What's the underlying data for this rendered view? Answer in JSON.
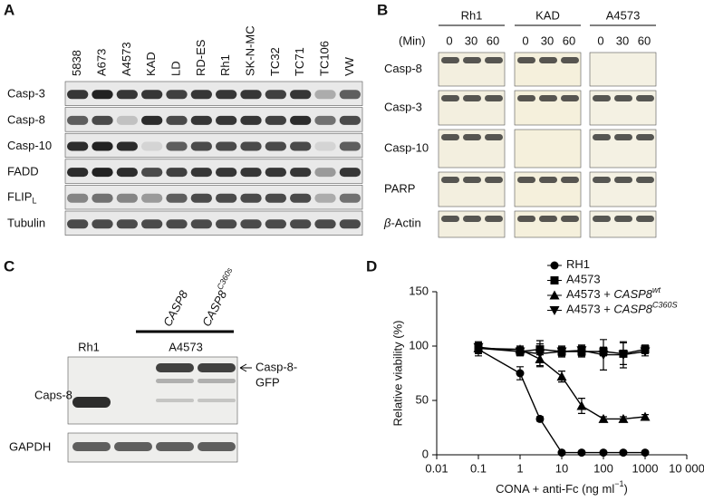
{
  "panel_a": {
    "label": "A",
    "lanes": [
      "5838",
      "A673",
      "A4573",
      "KAD",
      "LD",
      "RD-ES",
      "Rh1",
      "SK-N-MC",
      "TC32",
      "TC71",
      "TC106",
      "VW"
    ],
    "rows": [
      "Casp-3",
      "Casp-8",
      "Casp-10",
      "FADD",
      {
        "text": "FLIP",
        "sub": "L"
      },
      "Tubulin"
    ]
  },
  "panel_b": {
    "label": "B",
    "unit": "(Min)",
    "groups": [
      "Rh1",
      "KAD",
      "A4573"
    ],
    "times": [
      0,
      30,
      60
    ],
    "rows": [
      "Casp-8",
      "Casp-3",
      "Casp-10",
      "PARP",
      {
        "greek": "β",
        "text": "-Actin"
      }
    ]
  },
  "panel_c": {
    "label": "C",
    "constructs": [
      {
        "text": "CASP8"
      },
      {
        "text": "CASP8",
        "sup": "C360s"
      }
    ],
    "lanes": [
      "Rh1",
      "A4573"
    ],
    "rows": [
      "Caps-8",
      "GAPDH"
    ],
    "arrow_label": [
      "Casp-8-",
      "GFP"
    ]
  },
  "chart_data": {
    "type": "line",
    "label": "D",
    "xlabel": "CONA + anti-Fc (ng ml",
    "xlabel_sup": "−1",
    "xlabel_end": ")",
    "ylabel": "Relative viability (%)",
    "x": [
      0.1,
      1,
      3,
      10,
      30,
      100,
      300,
      1000
    ],
    "xscale": "log",
    "xlim": [
      0.01,
      10000
    ],
    "xticks": [
      0.01,
      0.1,
      1,
      10,
      100,
      1000,
      {
        "value": 10000,
        "label": "10 000"
      }
    ],
    "ylim": [
      0,
      150
    ],
    "yticks": [
      0,
      50,
      100,
      150
    ],
    "series": [
      {
        "name": "RH1",
        "color": "#000000",
        "marker": "circle",
        "values": [
          97,
          75,
          33,
          2,
          2,
          2,
          2,
          2
        ],
        "errors": [
          6,
          6,
          2,
          1,
          1,
          1,
          1,
          1
        ]
      },
      {
        "name": "A4573",
        "color": "#000000",
        "marker": "square",
        "values": [
          98,
          95,
          97,
          95,
          95,
          95,
          93,
          97
        ],
        "errors": [
          4,
          4,
          5,
          5,
          5,
          4,
          10,
          4
        ]
      },
      {
        "name": "A4573 + ",
        "gene": "CASP8",
        "sup": "wt",
        "color": "#000000",
        "marker": "triangle-up",
        "values": [
          98,
          97,
          88,
          72,
          45,
          33,
          33,
          35
        ],
        "errors": [
          5,
          3,
          6,
          5,
          7,
          2,
          2,
          2
        ]
      },
      {
        "name": "A4573 + ",
        "gene": "CASP8",
        "sup": "C360S",
        "color": "#000000",
        "marker": "triangle-down",
        "values": [
          99,
          95,
          93,
          95,
          96,
          92,
          92,
          95
        ],
        "errors": [
          5,
          3,
          12,
          4,
          5,
          14,
          12,
          4
        ]
      }
    ]
  }
}
